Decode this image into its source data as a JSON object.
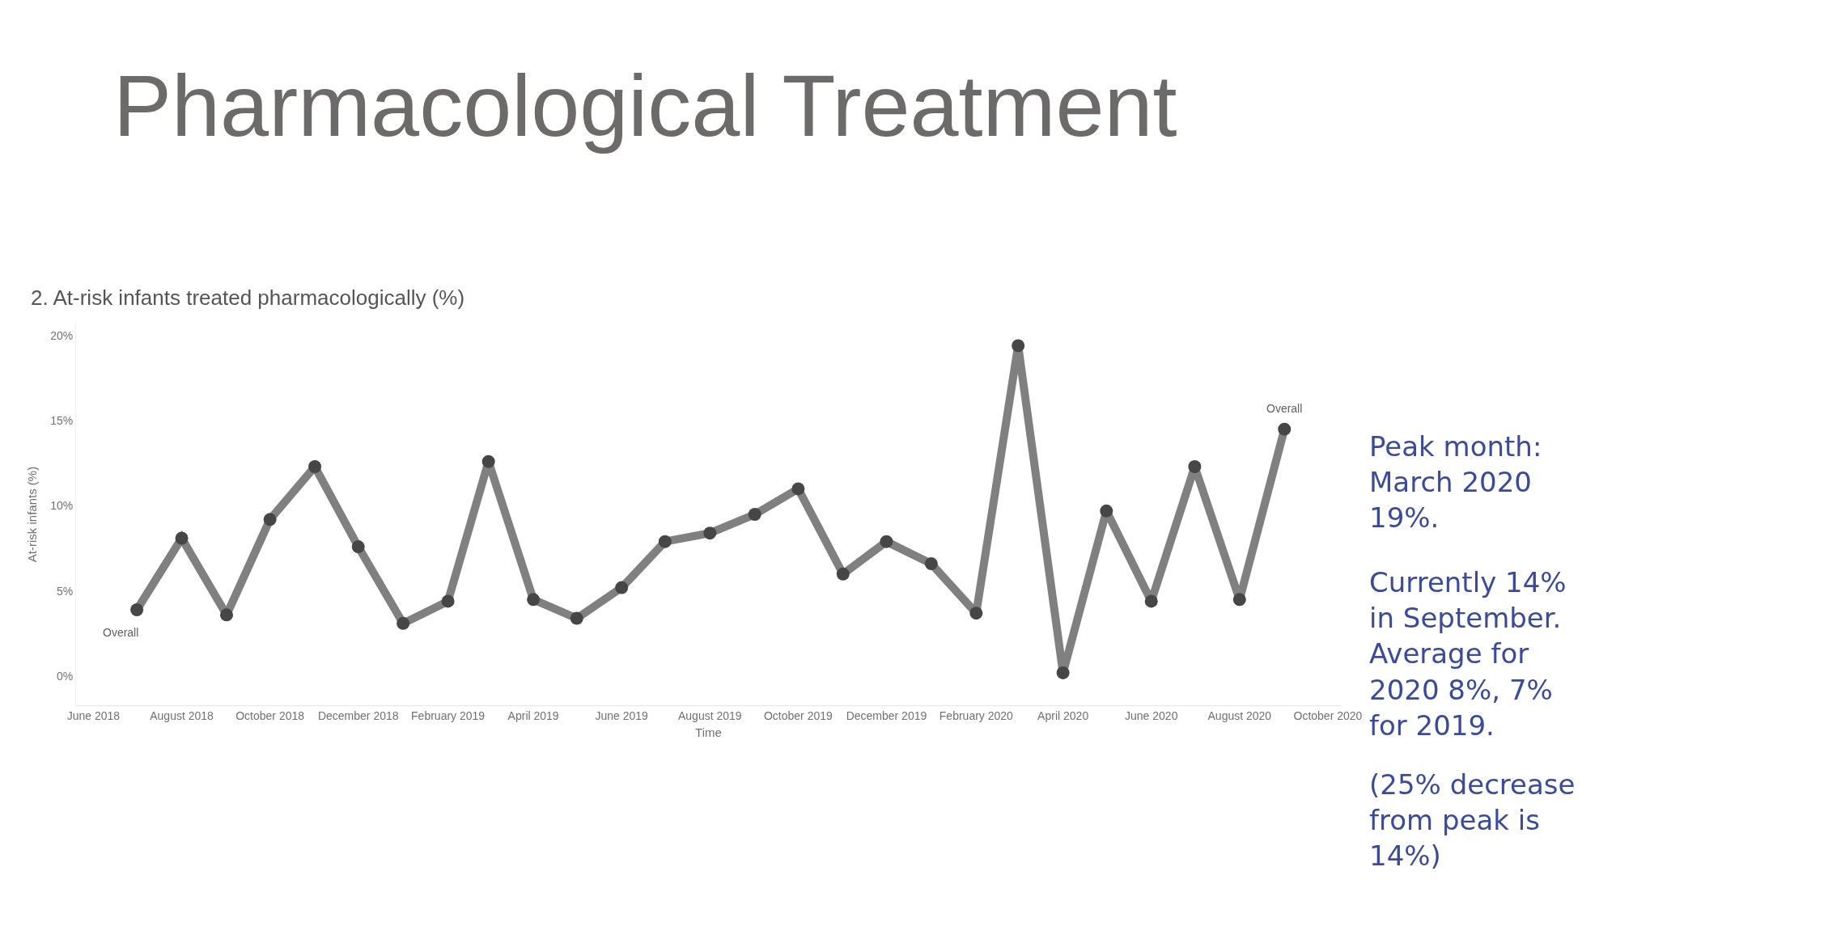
{
  "chart_data": {
    "type": "line",
    "title": "Pharmacological Treatment",
    "subtitle": "2. At-risk infants treated pharmacologically (%)",
    "xlabel": "Time",
    "ylabel": "At-risk infants (%)",
    "x": [
      "2018-07",
      "2018-08",
      "2018-09",
      "2018-10",
      "2018-11",
      "2018-12",
      "2019-01",
      "2019-02",
      "2019-03",
      "2019-04",
      "2019-05",
      "2019-06",
      "2019-07",
      "2019-08",
      "2019-09",
      "2019-10",
      "2019-11",
      "2019-12",
      "2020-01",
      "2020-02",
      "2020-03",
      "2020-04",
      "2020-05",
      "2020-06",
      "2020-07",
      "2020-08",
      "2020-09"
    ],
    "series": [
      {
        "color": "#808080",
        "values": [
          3.9,
          8.1,
          3.6,
          9.2,
          12.3,
          7.6,
          3.1,
          4.4,
          12.6,
          4.5,
          3.4,
          5.2,
          7.9,
          8.4,
          9.5,
          11.0,
          6.0,
          7.9,
          6.6,
          3.7,
          19.4,
          0.2,
          9.7,
          4.4,
          12.3,
          4.5,
          14.5
        ]
      }
    ],
    "xlim": [
      "2018-05-20",
      "2020-10-10"
    ],
    "xticks": [
      {
        "value": "2018-06",
        "label": "June 2018"
      },
      {
        "value": "2018-08",
        "label": "August 2018"
      },
      {
        "value": "2018-10",
        "label": "October 2018"
      },
      {
        "value": "2018-12",
        "label": "December 2018"
      },
      {
        "value": "2019-02",
        "label": "February 2019"
      },
      {
        "value": "2019-04",
        "label": "April 2019"
      },
      {
        "value": "2019-06",
        "label": "June 2019"
      },
      {
        "value": "2019-08",
        "label": "August 2019"
      },
      {
        "value": "2019-10",
        "label": "October 2019"
      },
      {
        "value": "2019-12",
        "label": "December 2019"
      },
      {
        "value": "2020-02",
        "label": "February 2020"
      },
      {
        "value": "2020-04",
        "label": "April 2020"
      },
      {
        "value": "2020-06",
        "label": "June 2020"
      },
      {
        "value": "2020-08",
        "label": "August 2020"
      },
      {
        "value": "2020-10",
        "label": "October 2020"
      }
    ],
    "ylim": [
      -1.7,
      20.7
    ],
    "yticks": [
      {
        "value": 0,
        "label": "0%"
      },
      {
        "value": 5,
        "label": "5%"
      },
      {
        "value": 10,
        "label": "10%"
      },
      {
        "value": 15,
        "label": "15%"
      },
      {
        "value": 20,
        "label": "20%"
      }
    ],
    "annotations": [
      {
        "text": "Overall",
        "x": "2018-07",
        "y": 3.9
      },
      {
        "text": "Overall",
        "x": "2020-09",
        "y": 14.5
      },
      "Peak month: March 2020 19%.",
      "Currently 14% in September. Average for 2020 8%, 7% for 2019.",
      "(25% decrease from peak is 14%)"
    ],
    "grid": false,
    "legend": false,
    "marker": "circle",
    "line_style": "solid"
  }
}
